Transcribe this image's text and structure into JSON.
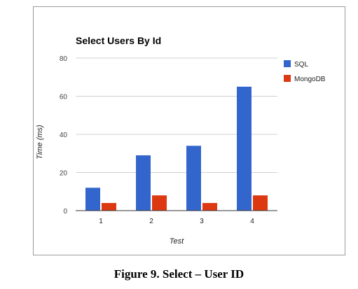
{
  "chart_data": {
    "type": "bar",
    "title": "Select Users By Id",
    "xlabel": "Test",
    "ylabel": "Time (ms)",
    "categories": [
      "1",
      "2",
      "3",
      "4"
    ],
    "series": [
      {
        "name": "SQL",
        "values": [
          12,
          29,
          34,
          65
        ],
        "color": "#3366cc"
      },
      {
        "name": "MongoDB",
        "values": [
          4,
          8,
          4,
          8
        ],
        "color": "#dc3912"
      }
    ],
    "ylim": [
      0,
      80
    ],
    "yticks": [
      "0",
      "20",
      "40",
      "60",
      "80"
    ],
    "grid": true,
    "legend_position": "right"
  },
  "caption": "Figure 9.  Select – User ID"
}
